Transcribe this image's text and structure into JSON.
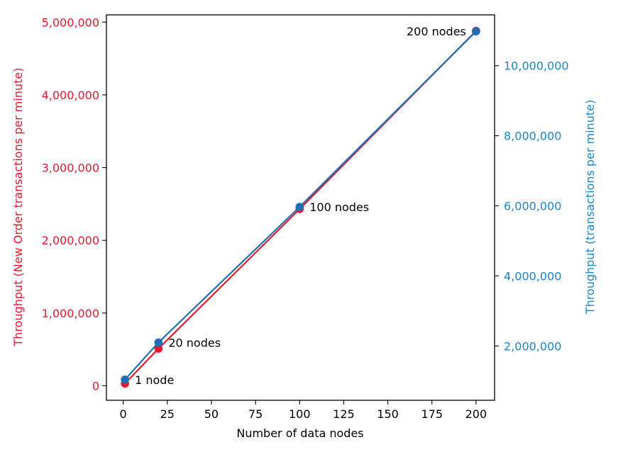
{
  "chart_data": {
    "type": "line",
    "x": [
      1,
      20,
      100,
      200
    ],
    "xlabel": "Number of data nodes",
    "xlim": [
      -9.5,
      210.5
    ],
    "xticks": [
      0,
      25,
      50,
      75,
      100,
      125,
      150,
      175,
      200
    ],
    "point_labels": [
      "1 node",
      "20 nodes",
      "100 nodes",
      "200 nodes"
    ],
    "left_axis": {
      "label": "Throughput (New Order transactions per minute)",
      "color": "#e8182e",
      "ylim": [
        -200000,
        5100000
      ],
      "ticks": [
        0,
        1000000,
        2000000,
        3000000,
        4000000,
        5000000
      ],
      "tick_labels": [
        "0",
        "1,000,000",
        "2,000,000",
        "3,000,000",
        "4,000,000",
        "5,000,000"
      ]
    },
    "right_axis": {
      "label": "Throughput (transactions per minute)",
      "color": "#1a86c8",
      "ylim": [
        450000,
        11450000
      ],
      "ticks": [
        2000000,
        4000000,
        6000000,
        8000000,
        10000000
      ],
      "tick_labels": [
        "2,000,000",
        "4,000,000",
        "6,000,000",
        "8,000,000",
        "10,000,000"
      ]
    },
    "series": [
      {
        "axis": "left",
        "color": "#e8182e",
        "values": [
          30000,
          510000,
          2430000,
          4880000
        ]
      },
      {
        "axis": "right",
        "color": "#1f6fb5",
        "values": [
          1040000,
          2100000,
          5970000,
          10980000
        ]
      }
    ]
  }
}
